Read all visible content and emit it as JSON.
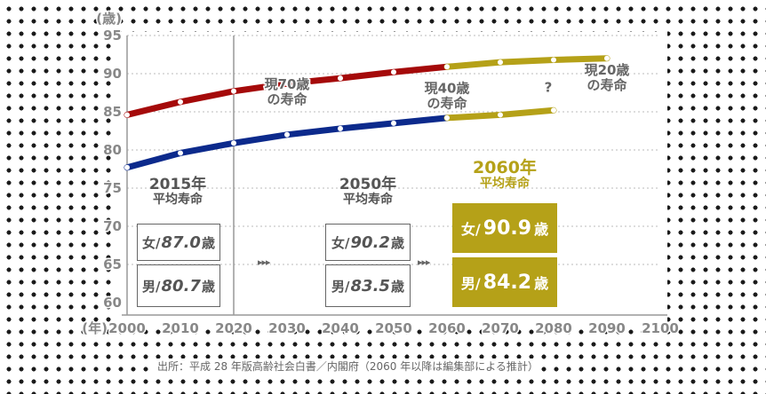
{
  "chart_data": {
    "type": "line",
    "y_unit": "(歳)",
    "x_unit": "(年)",
    "ylim": [
      60,
      95
    ],
    "xlim": [
      2000,
      2100
    ],
    "y_ticks": [
      "60",
      "65",
      "70",
      "75",
      "80",
      "85",
      "90",
      "95"
    ],
    "x_ticks": [
      "2000",
      "2010",
      "2020",
      "2030",
      "2040",
      "2050",
      "2060",
      "2070",
      "2080",
      "2090",
      "2100"
    ],
    "series": [
      {
        "name": "女",
        "color": "#a50a0a",
        "x": [
          2000,
          2010,
          2020,
          2030,
          2040,
          2050,
          2060
        ],
        "values": [
          84.6,
          86.3,
          87.7,
          88.7,
          89.4,
          90.2,
          90.9
        ]
      },
      {
        "name": "男",
        "color": "#0c2a8c",
        "x": [
          2000,
          2010,
          2020,
          2030,
          2040,
          2050,
          2060
        ],
        "values": [
          77.7,
          79.6,
          80.9,
          82.0,
          82.8,
          83.5,
          84.2
        ]
      },
      {
        "name": "",
        "color": "#b5a118",
        "x": [
          2060,
          2070,
          2080,
          2090
        ],
        "values": [
          90.9,
          91.5,
          91.8,
          92.0
        ]
      },
      {
        "name": "",
        "color": "#b5a118",
        "x": [
          2060,
          2070,
          2080
        ],
        "values": [
          84.2,
          84.6,
          85.2
        ]
      }
    ],
    "annotations": [
      {
        "text": "現70歳\nの寿命"
      },
      {
        "text": "現40歳\nの寿命"
      },
      {
        "text": "現20歳\nの寿命"
      },
      {
        "text": "?"
      }
    ]
  },
  "panels": {
    "p2015": {
      "title": "2015年",
      "subtitle": "平均寿命",
      "female_prefix": "女/",
      "female_value": "87.0",
      "male_prefix": "男/",
      "male_value": "80.7",
      "unit": "歳"
    },
    "p2050": {
      "title": "2050年",
      "subtitle": "平均寿命",
      "female_prefix": "女/",
      "female_value": "90.2",
      "male_prefix": "男/",
      "male_value": "83.5",
      "unit": "歳"
    },
    "p2060": {
      "title": "2060年",
      "subtitle": "平均寿命",
      "female_prefix": "女/",
      "female_value": "90.9",
      "male_prefix": "男/",
      "male_value": "84.2",
      "unit": "歳"
    }
  },
  "arrows": "▸▸▸",
  "source": "出所：平成 28 年版高齢社会白書／内閣府（2060 年以降は編集部による推計）"
}
